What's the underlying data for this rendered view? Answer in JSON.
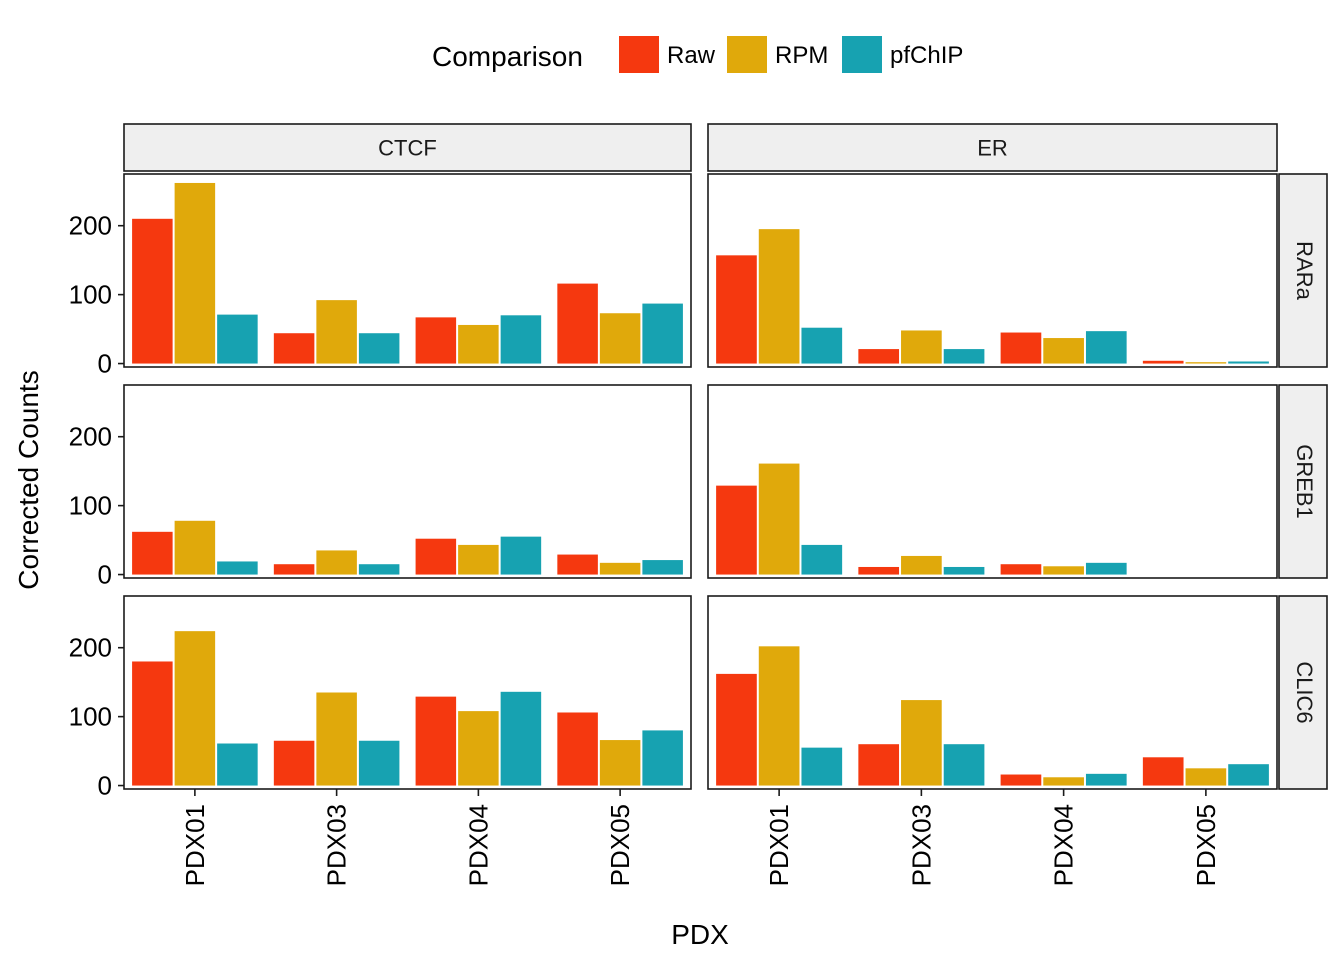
{
  "chart_data": {
    "type": "bar",
    "xlabel": "PDX",
    "ylabel": "Corrected Counts",
    "categories": [
      "PDX01",
      "PDX03",
      "PDX04",
      "PDX05"
    ],
    "yticks": [
      0,
      100,
      200
    ],
    "ylim": [
      -5,
      275
    ],
    "legend": {
      "title": "Comparison",
      "placement": "top",
      "entries": [
        "Raw",
        "RPM",
        "pfChIP"
      ]
    },
    "colors": {
      "Raw": "#F5380F",
      "RPM": "#E0A90B",
      "pfChIP": "#17A2B1"
    },
    "col_facets": [
      "CTCF",
      "ER"
    ],
    "row_facets": [
      "RARa",
      "GREB1",
      "CLIC6"
    ],
    "panels": [
      {
        "col": "CTCF",
        "row": "RARa",
        "series": [
          {
            "name": "Raw",
            "values": [
              210,
              44,
              67,
              116
            ]
          },
          {
            "name": "RPM",
            "values": [
              262,
              92,
              56,
              73
            ]
          },
          {
            "name": "pfChIP",
            "values": [
              71,
              44,
              70,
              87
            ]
          }
        ]
      },
      {
        "col": "ER",
        "row": "RARa",
        "series": [
          {
            "name": "Raw",
            "values": [
              157,
              21,
              45,
              4
            ]
          },
          {
            "name": "RPM",
            "values": [
              195,
              48,
              37,
              2
            ]
          },
          {
            "name": "pfChIP",
            "values": [
              52,
              21,
              47,
              3
            ]
          }
        ]
      },
      {
        "col": "CTCF",
        "row": "GREB1",
        "series": [
          {
            "name": "Raw",
            "values": [
              62,
              15,
              52,
              29
            ]
          },
          {
            "name": "RPM",
            "values": [
              78,
              35,
              43,
              17
            ]
          },
          {
            "name": "pfChIP",
            "values": [
              19,
              15,
              55,
              21
            ]
          }
        ]
      },
      {
        "col": "ER",
        "row": "GREB1",
        "series": [
          {
            "name": "Raw",
            "values": [
              129,
              11,
              15,
              null
            ]
          },
          {
            "name": "RPM",
            "values": [
              161,
              27,
              12,
              null
            ]
          },
          {
            "name": "pfChIP",
            "values": [
              43,
              11,
              17,
              null
            ]
          }
        ]
      },
      {
        "col": "CTCF",
        "row": "CLIC6",
        "series": [
          {
            "name": "Raw",
            "values": [
              180,
              65,
              129,
              106
            ]
          },
          {
            "name": "RPM",
            "values": [
              224,
              135,
              108,
              66
            ]
          },
          {
            "name": "pfChIP",
            "values": [
              61,
              65,
              136,
              80
            ]
          }
        ]
      },
      {
        "col": "ER",
        "row": "CLIC6",
        "series": [
          {
            "name": "Raw",
            "values": [
              162,
              60,
              16,
              41
            ]
          },
          {
            "name": "RPM",
            "values": [
              202,
              124,
              12,
              25
            ]
          },
          {
            "name": "pfChIP",
            "values": [
              55,
              60,
              17,
              31
            ]
          }
        ]
      }
    ]
  }
}
